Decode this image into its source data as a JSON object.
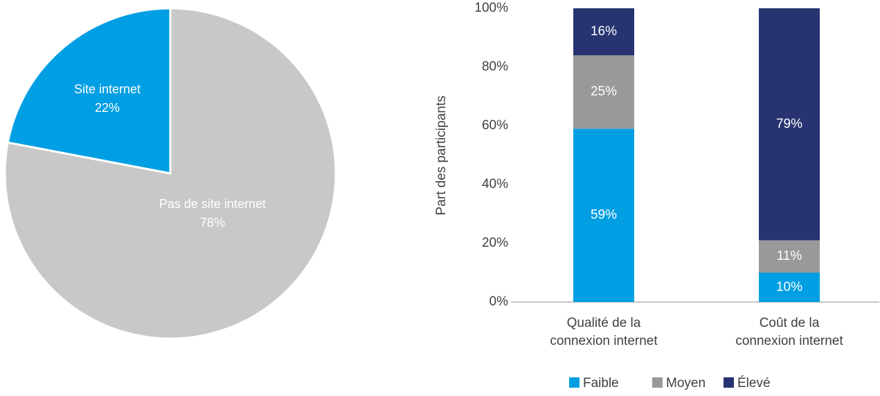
{
  "chart_data": [
    {
      "type": "pie",
      "slices": [
        {
          "label": "Site internet",
          "value": 22,
          "value_label": "22%",
          "color": "#009fe3",
          "label_color": "#ffffff"
        },
        {
          "label": "Pas de site internet",
          "value": 78,
          "value_label": "78%",
          "color": "#c8c8c8",
          "label_color": "#ffffff"
        }
      ]
    },
    {
      "type": "bar",
      "stacked": true,
      "categories": [
        "Qualité de la connexion internet",
        "Coût de la connexion internet"
      ],
      "category_lines": [
        [
          "Qualité de la",
          "connexion internet"
        ],
        [
          "Coût de la",
          "connexion internet"
        ]
      ],
      "series": [
        {
          "name": "Faible",
          "color": "#009fe3",
          "values": [
            59,
            10
          ],
          "labels": [
            "59%",
            "10%"
          ]
        },
        {
          "name": "Moyen",
          "color": "#999999",
          "values": [
            25,
            11
          ],
          "labels": [
            "25%",
            "11%"
          ]
        },
        {
          "name": "Élevé",
          "color": "#273471",
          "values": [
            16,
            79
          ],
          "labels": [
            "16%",
            "79%"
          ]
        }
      ],
      "ylabel": "Part des participants",
      "ylim": [
        0,
        100
      ],
      "yticks": [
        "0%",
        "20%",
        "40%",
        "60%",
        "80%",
        "100%"
      ],
      "legend_position": "bottom-center",
      "grid": false
    }
  ]
}
